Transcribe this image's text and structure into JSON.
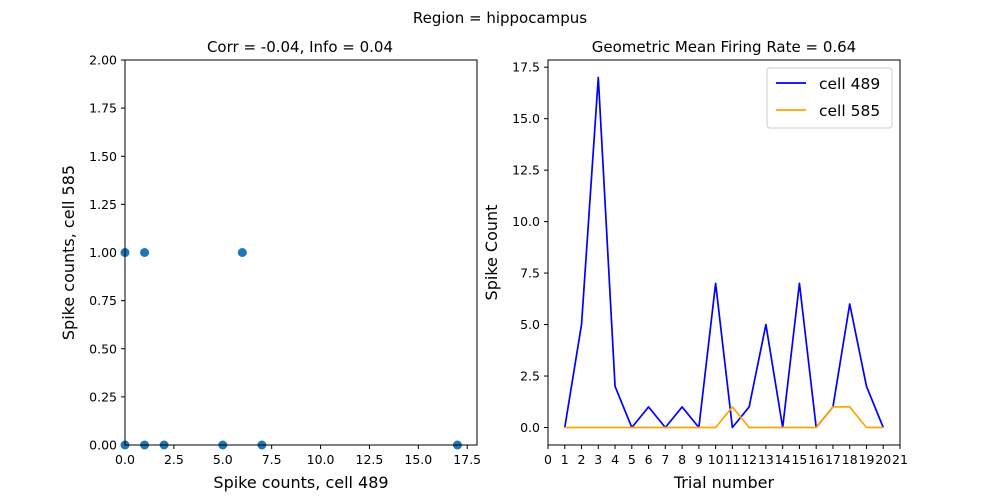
{
  "figure": {
    "suptitle": "Region = hippocampus"
  },
  "chart_data": [
    {
      "type": "scatter",
      "title": "Corr = -0.04, Info = 0.04",
      "xlabel": "Spike counts, cell 489",
      "ylabel": "Spike counts, cell 585",
      "xlim": [
        0,
        18
      ],
      "ylim": [
        0,
        2
      ],
      "x_ticks": [
        0,
        2.5,
        5,
        7.5,
        10,
        12.5,
        15,
        17.5
      ],
      "x_tick_labels": [
        "0.0",
        "2.5",
        "5.0",
        "7.5",
        "10.0",
        "12.5",
        "15.0",
        "17.5"
      ],
      "y_ticks": [
        0,
        0.25,
        0.5,
        0.75,
        1,
        1.25,
        1.5,
        1.75,
        2
      ],
      "y_tick_labels": [
        "0.00",
        "0.25",
        "0.50",
        "0.75",
        "1.00",
        "1.25",
        "1.50",
        "1.75",
        "2.00"
      ],
      "grid": false,
      "color": "#1f77b4",
      "points": [
        {
          "x": 0,
          "y": 1
        },
        {
          "x": 1,
          "y": 1
        },
        {
          "x": 6,
          "y": 1
        },
        {
          "x": 0,
          "y": 0
        },
        {
          "x": 1,
          "y": 0
        },
        {
          "x": 2,
          "y": 0
        },
        {
          "x": 5,
          "y": 0
        },
        {
          "x": 7,
          "y": 0
        },
        {
          "x": 17,
          "y": 0
        }
      ]
    },
    {
      "type": "line",
      "title": "Geometric Mean Firing Rate = 0.64",
      "xlabel": "Trial number",
      "ylabel": "Spike Count",
      "xlim": [
        0,
        21
      ],
      "ylim": [
        -0.85,
        17.85
      ],
      "x_ticks": [
        0,
        1,
        2,
        3,
        4,
        5,
        6,
        7,
        8,
        9,
        10,
        11,
        12,
        13,
        14,
        15,
        16,
        17,
        18,
        19,
        20,
        21
      ],
      "x_tick_labels": [
        "0",
        "1",
        "2",
        "3",
        "4",
        "5",
        "6",
        "7",
        "8",
        "9",
        "10",
        "11",
        "12",
        "13",
        "14",
        "15",
        "16",
        "17",
        "18",
        "19",
        "20",
        "21"
      ],
      "y_ticks": [
        0,
        2.5,
        5,
        7.5,
        10,
        12.5,
        15,
        17.5
      ],
      "y_tick_labels": [
        "0.0",
        "2.5",
        "5.0",
        "7.5",
        "10.0",
        "12.5",
        "15.0",
        "17.5"
      ],
      "grid": false,
      "legend_position": "top-right",
      "x": [
        1,
        2,
        3,
        4,
        5,
        6,
        7,
        8,
        9,
        10,
        11,
        12,
        13,
        14,
        15,
        16,
        17,
        18,
        19,
        20
      ],
      "series": [
        {
          "name": "cell 489",
          "color": "#0000ff",
          "values": [
            0,
            5,
            17,
            2,
            0,
            1,
            0,
            1,
            0,
            7,
            0,
            1,
            5,
            0,
            7,
            0,
            1,
            6,
            2,
            0
          ]
        },
        {
          "name": "cell 585",
          "color": "#ffa500",
          "values": [
            0,
            0,
            0,
            0,
            0,
            0,
            0,
            0,
            0,
            0,
            1,
            0,
            0,
            0,
            0,
            0,
            1,
            1,
            0,
            0
          ]
        }
      ]
    }
  ]
}
